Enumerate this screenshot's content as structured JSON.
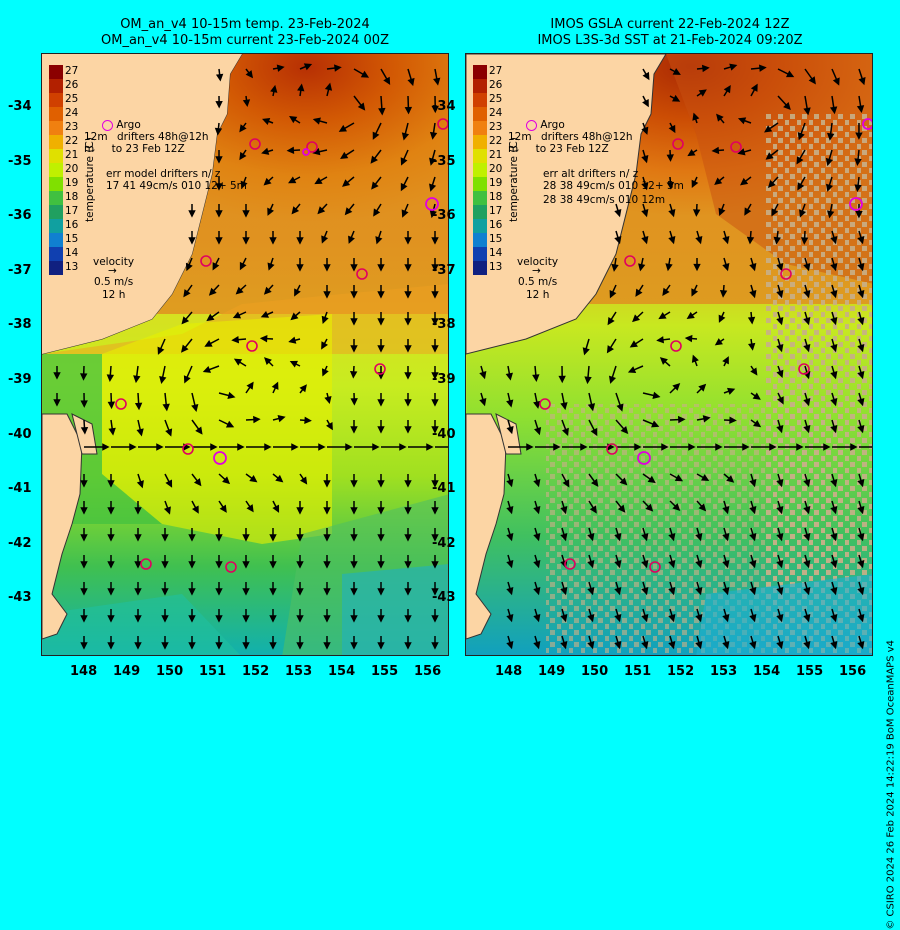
{
  "left_panel": {
    "title_line1": "OM_an_v4  10-15m temp. 23-Feb-2024",
    "title_line2": "OM_an_v4  10-15m current 23-Feb-2024 00Z",
    "legend": {
      "argo": "Argo",
      "drifters_prefix": "12m",
      "drifters_line1": "drifters 48h@12h",
      "drifters_line2": "to 23 Feb 12Z",
      "drifter_marker": "m",
      "err_line1": "err model drifters n/ z",
      "err_line2": "17 41 49cm/s 010 12+ 5m",
      "velocity_title": "velocity",
      "velocity_scale": "0.5 m/s",
      "velocity_time": "12 h"
    }
  },
  "right_panel": {
    "title_line1": "IMOS GSLA current 22-Feb-2024 12Z",
    "title_line2": "IMOS L3S-3d SST at 21-Feb-2024 09:20Z",
    "legend": {
      "argo": "Argo",
      "drifters_prefix": "12m",
      "drifters_line1": "drifters 48h@12h",
      "drifters_line2": "to 23 Feb 12Z",
      "drifter_marker": "m",
      "err_line1": "err alt drifters n/ z",
      "err_line2": "28 38 49cm/s 010 12+ 5m",
      "err_line3": "28 38 49cm/s 010 12m",
      "velocity_title": "velocity",
      "velocity_scale": "0.5 m/s",
      "velocity_time": "12 h"
    }
  },
  "colorbar": {
    "title": "temperature (C)",
    "ticks": [
      "27",
      "26",
      "25",
      "24",
      "23",
      "22",
      "21",
      "20",
      "19",
      "18",
      "17",
      "16",
      "15",
      "14",
      "13"
    ],
    "colors": [
      "#8b0000",
      "#b22000",
      "#d04000",
      "#e06000",
      "#f08010",
      "#f0b000",
      "#e0e000",
      "#c0f000",
      "#80e000",
      "#40c040",
      "#20a060",
      "#10a0a0",
      "#1080d0",
      "#1040b0",
      "#102080"
    ]
  },
  "y_axis_ticks": [
    "-34",
    "-35",
    "-36",
    "-37",
    "-38",
    "-39",
    "-40",
    "-41",
    "-42",
    "-43"
  ],
  "x_axis_ticks": [
    "148",
    "149",
    "150",
    "151",
    "152",
    "153",
    "154",
    "155",
    "156"
  ],
  "credit": "© CSIRO 2024  26 Feb 2024 14:22:19 BoM OceanMAPS v4"
}
